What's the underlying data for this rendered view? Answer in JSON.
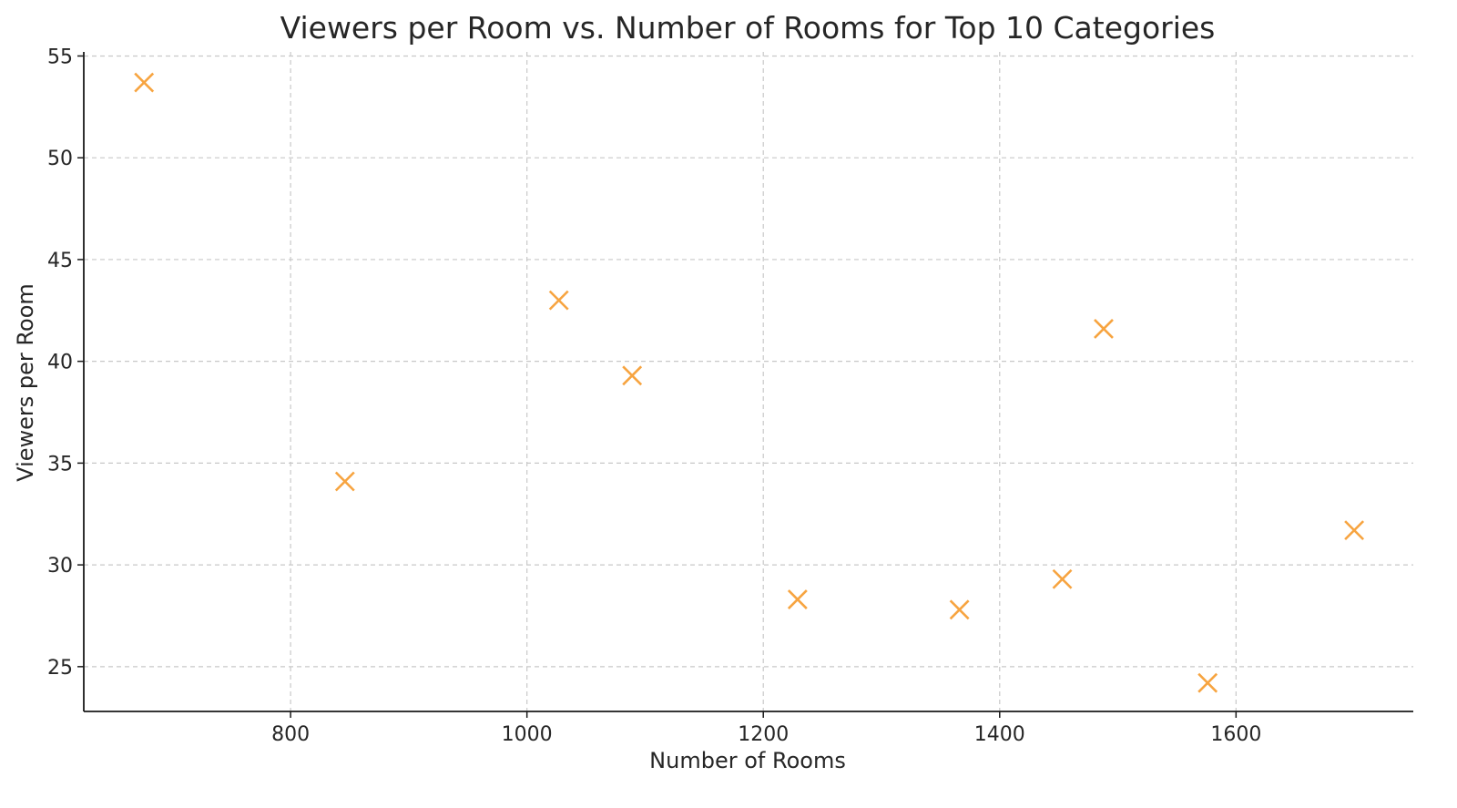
{
  "chart_data": {
    "type": "scatter",
    "title": "Viewers per Room vs. Number of Rooms for Top 10 Categories",
    "xlabel": "Number of Rooms",
    "ylabel": "Viewers per Room",
    "xlim": [
      625,
      1750
    ],
    "ylim": [
      22.8,
      55.2
    ],
    "xticks": [
      800,
      1000,
      1200,
      1400,
      1600
    ],
    "yticks": [
      25,
      30,
      35,
      40,
      45,
      50,
      55
    ],
    "grid": true,
    "marker": "x",
    "color": "#F7A440",
    "series": [
      {
        "points": [
          {
            "x": 676,
            "y": 53.7
          },
          {
            "x": 846,
            "y": 34.1
          },
          {
            "x": 1027,
            "y": 43.0
          },
          {
            "x": 1089,
            "y": 39.3
          },
          {
            "x": 1229,
            "y": 28.3
          },
          {
            "x": 1366,
            "y": 27.8
          },
          {
            "x": 1453,
            "y": 29.3
          },
          {
            "x": 1488,
            "y": 41.6
          },
          {
            "x": 1576,
            "y": 24.2
          },
          {
            "x": 1700,
            "y": 31.7
          }
        ]
      }
    ]
  }
}
